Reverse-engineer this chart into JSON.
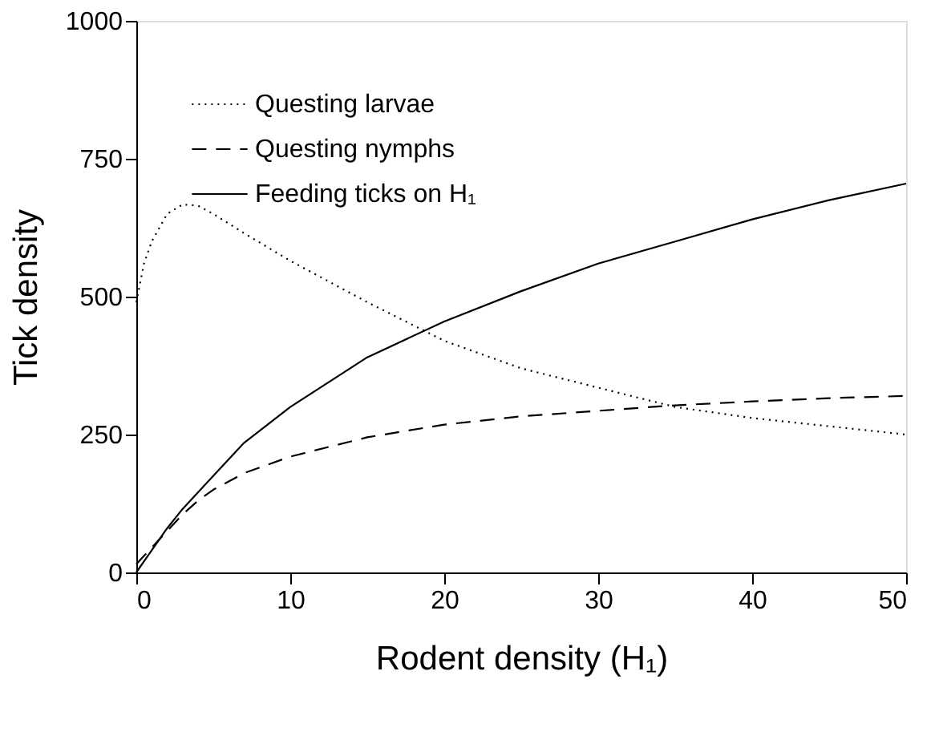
{
  "chart_data": {
    "type": "line",
    "xlabel": "Rodent density (H₁)",
    "ylabel": "Tick density",
    "x": [
      0,
      0.5,
      1,
      2,
      3,
      4,
      5,
      7,
      10,
      15,
      20,
      25,
      30,
      35,
      40,
      45,
      50
    ],
    "series": [
      {
        "name": "Questing larvae",
        "color": "#000000",
        "line_style": "dotted",
        "values": [
          490,
          560,
          600,
          650,
          667,
          665,
          650,
          615,
          565,
          490,
          420,
          370,
          335,
          300,
          280,
          265,
          250
        ]
      },
      {
        "name": "Questing nymphs",
        "color": "#000000",
        "line_style": "dashed",
        "values": [
          15,
          30,
          45,
          75,
          105,
          130,
          150,
          180,
          210,
          245,
          268,
          283,
          293,
          303,
          310,
          316,
          320
        ]
      },
      {
        "name": "Feeding ticks on H₁",
        "color": "#000000",
        "line_style": "solid",
        "values": [
          0,
          20,
          40,
          80,
          115,
          145,
          175,
          235,
          300,
          390,
          455,
          510,
          560,
          600,
          640,
          675,
          705
        ]
      }
    ],
    "xlim": [
      0,
      50
    ],
    "xticks": [
      0,
      10,
      20,
      30,
      40,
      50
    ],
    "ylim": [
      0,
      1000
    ],
    "yticks": [
      0,
      250,
      500,
      750,
      1000
    ],
    "grid": false,
    "legend": "top left",
    "marker": "none"
  }
}
